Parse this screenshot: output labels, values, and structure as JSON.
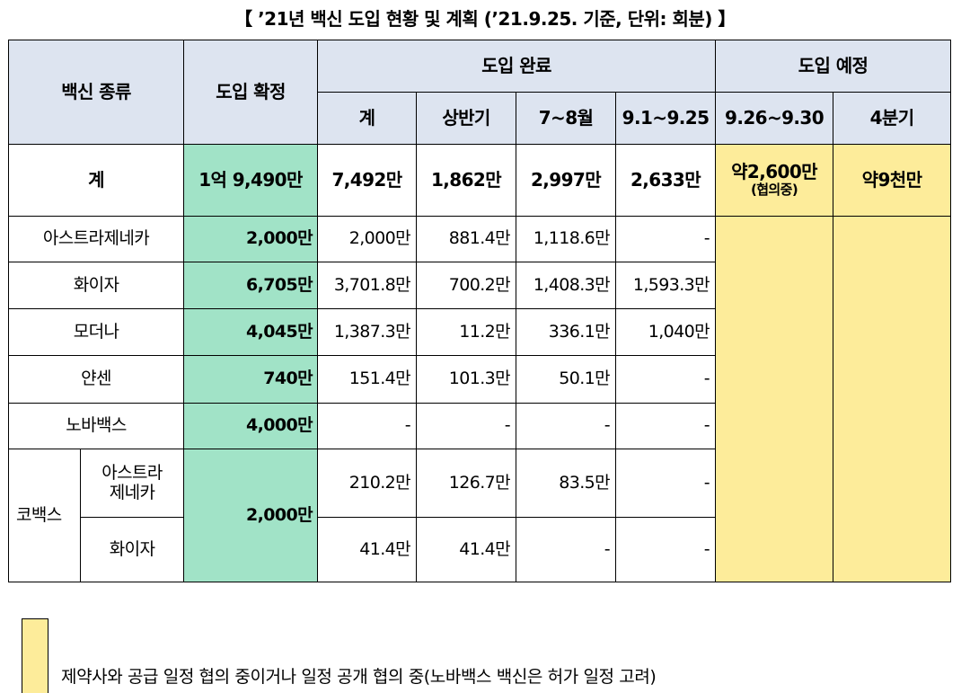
{
  "title": "【 ’21년 백신 도입 현황 및 계획 (’21.9.25. 기준, 단위: 회분) 】",
  "headers": {
    "vaccine_type": "백신 종류",
    "confirmed": "도입 확정",
    "completed": "도입 완료",
    "planned": "도입 예정",
    "sub": [
      "계",
      "상반기",
      "7~8월",
      "9.1~9.25",
      "9.26~9.30",
      "4분기"
    ]
  },
  "total": {
    "label": "계",
    "confirmed": "1억 9,490만",
    "completed": [
      "7,492만",
      "1,862만",
      "2,997만",
      "2,633만"
    ],
    "planned_q3": "약2,600만",
    "planned_q3_note": "(협의중)",
    "planned_q4": "약9천만"
  },
  "rows": [
    {
      "name": "아스트라제네카",
      "confirmed": "2,000만",
      "values": [
        "2,000만",
        "881.4만",
        "1,118.6만",
        "-"
      ]
    },
    {
      "name": "화이자",
      "confirmed": "6,705만",
      "values": [
        "3,701.8만",
        "700.2만",
        "1,408.3만",
        "1,593.3만"
      ]
    },
    {
      "name": "모더나",
      "confirmed": "4,045만",
      "values": [
        "1,387.3만",
        "11.2만",
        "336.1만",
        "1,040만"
      ]
    },
    {
      "name": "얀센",
      "confirmed": "740만",
      "values": [
        "151.4만",
        "101.3만",
        "50.1만",
        "-"
      ]
    },
    {
      "name": "노바백스",
      "confirmed": "4,000만",
      "values": [
        "-",
        "-",
        "-",
        "-"
      ]
    }
  ],
  "covax": {
    "label": "코백스",
    "confirmed": "2,000만",
    "rows": [
      {
        "name_line1": "아스트라",
        "name_line2": "제네카",
        "values": [
          "210.2만",
          "126.7만",
          "83.5만",
          "-"
        ]
      },
      {
        "name": "화이자",
        "values": [
          "41.4만",
          "41.4만",
          "-",
          "-"
        ]
      }
    ]
  },
  "legend": "제약사와 공급 일정 협의 중이거나 일정 공개 협의 중(노바백스 백신은 허가 일정 고려)",
  "colors": {
    "header": "#dde4f0",
    "confirmed": "#a1e3c7",
    "planned": "#fdec9a"
  }
}
